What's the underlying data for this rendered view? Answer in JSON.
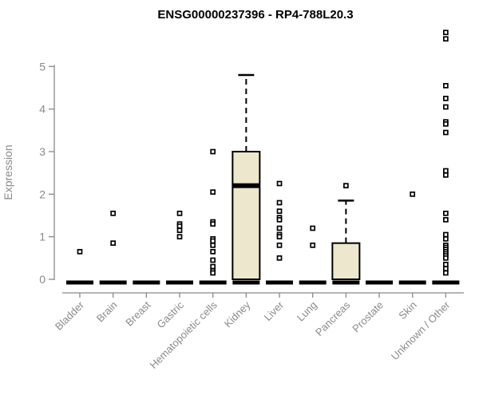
{
  "colors": {
    "box_fill": "#ECE7CD",
    "box_stroke": "#000000",
    "axis": "#8a8a8a",
    "title_color": "#000000",
    "background": "#ffffff"
  },
  "chart_data": {
    "type": "boxplot",
    "title": "ENSG00000237396 - RP4-788L20.3",
    "ylabel": "Expression",
    "ylim": [
      0,
      5.9
    ],
    "yticks": [
      0,
      1,
      2,
      3,
      4,
      5
    ],
    "grid": false,
    "legend": false,
    "categories": [
      "Bladder",
      "Brain",
      "Breast",
      "Gastric",
      "Hematopoietic cells",
      "Kidney",
      "Liver",
      "Lung",
      "Pancreas",
      "Prostate",
      "Skin",
      "Unknown / Other"
    ],
    "series": [
      {
        "name": "Bladder",
        "q1": 0,
        "median": 0,
        "q3": 0,
        "whisker_low": 0,
        "whisker_high": 0,
        "outliers": [
          0.65
        ]
      },
      {
        "name": "Brain",
        "q1": 0,
        "median": 0,
        "q3": 0,
        "whisker_low": 0,
        "whisker_high": 0,
        "outliers": [
          1.55,
          0.85
        ]
      },
      {
        "name": "Breast",
        "q1": 0,
        "median": 0,
        "q3": 0,
        "whisker_low": 0,
        "whisker_high": 0,
        "outliers": []
      },
      {
        "name": "Gastric",
        "q1": 0,
        "median": 0,
        "q3": 0,
        "whisker_low": 0,
        "whisker_high": 0,
        "outliers": [
          1.55,
          1.3,
          1.25,
          1.15,
          1.0
        ]
      },
      {
        "name": "Hematopoietic cells",
        "q1": 0,
        "median": 0,
        "q3": 0,
        "whisker_low": 0,
        "whisker_high": 0,
        "outliers": [
          3.0,
          2.05,
          1.35,
          1.3,
          0.95,
          0.9,
          0.8,
          0.65,
          0.45,
          0.3,
          0.2,
          0.15
        ]
      },
      {
        "name": "Kidney",
        "q1": 0,
        "median": 2.2,
        "q3": 3.0,
        "whisker_low": 0,
        "whisker_high": 4.8,
        "outliers": []
      },
      {
        "name": "Liver",
        "q1": 0,
        "median": 0,
        "q3": 0,
        "whisker_low": 0,
        "whisker_high": 0,
        "outliers": [
          2.25,
          1.8,
          1.6,
          1.45,
          1.4,
          1.2,
          1.05,
          1.0,
          0.8,
          0.5
        ]
      },
      {
        "name": "Lung",
        "q1": 0,
        "median": 0,
        "q3": 0,
        "whisker_low": 0,
        "whisker_high": 0,
        "outliers": [
          1.2,
          0.8
        ]
      },
      {
        "name": "Pancreas",
        "q1": 0,
        "median": 0,
        "q3": 0.85,
        "whisker_low": 0,
        "whisker_high": 1.85,
        "outliers": [
          2.2
        ]
      },
      {
        "name": "Prostate",
        "q1": 0,
        "median": 0,
        "q3": 0,
        "whisker_low": 0,
        "whisker_high": 0,
        "outliers": []
      },
      {
        "name": "Skin",
        "q1": 0,
        "median": 0,
        "q3": 0,
        "whisker_low": 0,
        "whisker_high": 0,
        "outliers": [
          2.0
        ]
      },
      {
        "name": "Unknown / Other",
        "q1": 0,
        "median": 0,
        "q3": 0,
        "whisker_low": 0,
        "whisker_high": 0,
        "outliers": [
          5.8,
          5.65,
          4.55,
          4.25,
          4.05,
          3.7,
          3.65,
          3.45,
          2.55,
          2.45,
          1.55,
          1.4,
          1.05,
          0.95,
          0.8,
          0.75,
          0.7,
          0.65,
          0.6,
          0.55,
          0.5,
          0.35,
          0.25,
          0.15
        ]
      }
    ]
  }
}
